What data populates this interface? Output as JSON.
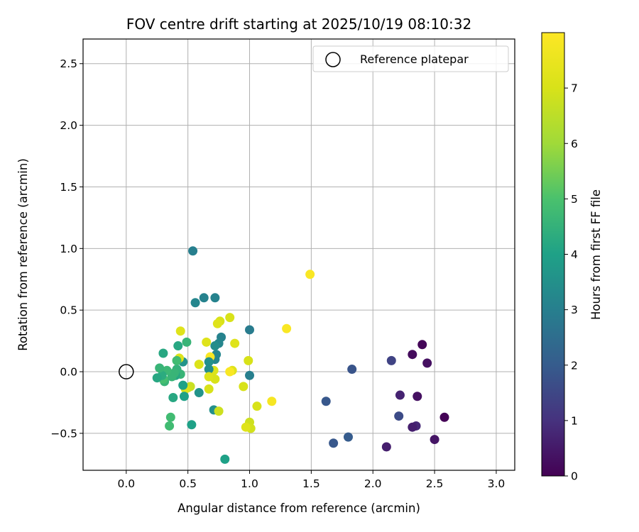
{
  "chart_data": {
    "type": "scatter",
    "title": "FOV centre drift starting at 2025/10/19 08:10:32",
    "xlabel": "Angular distance from reference (arcmin)",
    "ylabel": "Rotation from reference (arcmin)",
    "xlim": [
      -0.35,
      3.15
    ],
    "ylim": [
      -0.8,
      2.7
    ],
    "xticks": [
      0.0,
      0.5,
      1.0,
      1.5,
      2.0,
      2.5,
      3.0
    ],
    "xtick_labels": [
      "0.0",
      "0.5",
      "1.0",
      "1.5",
      "2.0",
      "2.5",
      "3.0"
    ],
    "yticks": [
      -0.5,
      0.0,
      0.5,
      1.0,
      1.5,
      2.0,
      2.5
    ],
    "ytick_labels": [
      "−0.5",
      "0.0",
      "0.5",
      "1.0",
      "1.5",
      "2.0",
      "2.5"
    ],
    "grid": true,
    "legend": {
      "placement": "top-right",
      "label": "Reference platepar"
    },
    "reference_point": {
      "x": 0.0,
      "y": 0.0
    },
    "colorbar": {
      "label": "Hours from first FF file",
      "colormap": "viridis",
      "range": [
        0,
        8
      ],
      "ticks": [
        0,
        1,
        2,
        3,
        4,
        5,
        6,
        7
      ],
      "tick_labels": [
        "0",
        "1",
        "2",
        "3",
        "4",
        "5",
        "6",
        "7"
      ]
    },
    "points": [
      {
        "x": 2.4,
        "y": 0.22,
        "t": 0.1
      },
      {
        "x": 2.44,
        "y": 0.07,
        "t": 0.3
      },
      {
        "x": 2.32,
        "y": 0.14,
        "t": 0.2
      },
      {
        "x": 2.58,
        "y": -0.37,
        "t": 0.05
      },
      {
        "x": 2.5,
        "y": -0.55,
        "t": 0.4
      },
      {
        "x": 2.36,
        "y": -0.2,
        "t": 0.3
      },
      {
        "x": 2.22,
        "y": -0.19,
        "t": 0.7
      },
      {
        "x": 2.35,
        "y": -0.44,
        "t": 0.8
      },
      {
        "x": 2.32,
        "y": -0.45,
        "t": 0.6
      },
      {
        "x": 2.11,
        "y": -0.61,
        "t": 0.6
      },
      {
        "x": 2.21,
        "y": -0.36,
        "t": 1.6
      },
      {
        "x": 2.15,
        "y": 0.09,
        "t": 1.4
      },
      {
        "x": 1.83,
        "y": 0.02,
        "t": 1.8
      },
      {
        "x": 1.62,
        "y": -0.24,
        "t": 1.9
      },
      {
        "x": 1.8,
        "y": -0.53,
        "t": 2.0
      },
      {
        "x": 1.68,
        "y": -0.58,
        "t": 1.9
      },
      {
        "x": 1.49,
        "y": 0.79,
        "t": 7.9
      },
      {
        "x": 1.3,
        "y": 0.35,
        "t": 7.9
      },
      {
        "x": 1.18,
        "y": -0.24,
        "t": 7.8
      },
      {
        "x": 1.06,
        "y": -0.28,
        "t": 7.0
      },
      {
        "x": 1.0,
        "y": -0.41,
        "t": 6.8
      },
      {
        "x": 1.01,
        "y": -0.46,
        "t": 6.9
      },
      {
        "x": 0.97,
        "y": -0.45,
        "t": 7.2
      },
      {
        "x": 0.95,
        "y": -0.12,
        "t": 7.0
      },
      {
        "x": 0.99,
        "y": 0.09,
        "t": 7.0
      },
      {
        "x": 1.0,
        "y": 0.34,
        "t": 2.9
      },
      {
        "x": 1.0,
        "y": -0.03,
        "t": 3.0
      },
      {
        "x": 0.88,
        "y": 0.23,
        "t": 7.2
      },
      {
        "x": 0.86,
        "y": 0.01,
        "t": 7.2
      },
      {
        "x": 0.84,
        "y": 0.0,
        "t": 7.9
      },
      {
        "x": 0.84,
        "y": 0.44,
        "t": 7.0
      },
      {
        "x": 0.8,
        "y": -0.71,
        "t": 4.0
      },
      {
        "x": 0.77,
        "y": 0.28,
        "t": 3.1
      },
      {
        "x": 0.76,
        "y": 0.41,
        "t": 7.0
      },
      {
        "x": 0.74,
        "y": 0.39,
        "t": 7.2
      },
      {
        "x": 0.75,
        "y": 0.23,
        "t": 3.2
      },
      {
        "x": 0.73,
        "y": 0.14,
        "t": 3.2
      },
      {
        "x": 0.72,
        "y": 0.21,
        "t": 3.4
      },
      {
        "x": 0.72,
        "y": 0.1,
        "t": 3.2
      },
      {
        "x": 0.72,
        "y": 0.6,
        "t": 3.1
      },
      {
        "x": 0.71,
        "y": 0.01,
        "t": 7.1
      },
      {
        "x": 0.72,
        "y": -0.06,
        "t": 7.0
      },
      {
        "x": 0.71,
        "y": -0.31,
        "t": 3.5
      },
      {
        "x": 0.75,
        "y": -0.32,
        "t": 6.8
      },
      {
        "x": 0.68,
        "y": 0.12,
        "t": 7.9
      },
      {
        "x": 0.67,
        "y": 0.08,
        "t": 3.5
      },
      {
        "x": 0.67,
        "y": 0.02,
        "t": 3.4
      },
      {
        "x": 0.67,
        "y": -0.04,
        "t": 7.1
      },
      {
        "x": 0.67,
        "y": -0.14,
        "t": 7.0
      },
      {
        "x": 0.65,
        "y": 0.24,
        "t": 7.2
      },
      {
        "x": 0.63,
        "y": 0.6,
        "t": 3.1
      },
      {
        "x": 0.59,
        "y": 0.06,
        "t": 7.1
      },
      {
        "x": 0.59,
        "y": -0.17,
        "t": 3.6
      },
      {
        "x": 0.56,
        "y": 0.56,
        "t": 3.2
      },
      {
        "x": 0.54,
        "y": 0.98,
        "t": 3.0
      },
      {
        "x": 0.53,
        "y": -0.43,
        "t": 4.0
      },
      {
        "x": 0.52,
        "y": -0.12,
        "t": 6.7
      },
      {
        "x": 0.5,
        "y": -0.13,
        "t": 6.8
      },
      {
        "x": 0.49,
        "y": 0.24,
        "t": 4.6
      },
      {
        "x": 0.48,
        "y": -0.14,
        "t": 7.2
      },
      {
        "x": 0.47,
        "y": -0.2,
        "t": 4.0
      },
      {
        "x": 0.46,
        "y": 0.08,
        "t": 3.6
      },
      {
        "x": 0.46,
        "y": -0.11,
        "t": 4.0
      },
      {
        "x": 0.44,
        "y": 0.33,
        "t": 7.2
      },
      {
        "x": 0.44,
        "y": -0.02,
        "t": 4.6
      },
      {
        "x": 0.43,
        "y": 0.11,
        "t": 7.1
      },
      {
        "x": 0.42,
        "y": 0.21,
        "t": 4.2
      },
      {
        "x": 0.41,
        "y": 0.02,
        "t": 4.5
      },
      {
        "x": 0.41,
        "y": 0.09,
        "t": 4.8
      },
      {
        "x": 0.4,
        "y": -0.03,
        "t": 4.2
      },
      {
        "x": 0.39,
        "y": -0.01,
        "t": 4.6
      },
      {
        "x": 0.38,
        "y": -0.21,
        "t": 4.2
      },
      {
        "x": 0.37,
        "y": -0.04,
        "t": 4.6
      },
      {
        "x": 0.36,
        "y": -0.37,
        "t": 4.8
      },
      {
        "x": 0.35,
        "y": -0.44,
        "t": 4.8
      },
      {
        "x": 0.33,
        "y": 0.01,
        "t": 4.7
      },
      {
        "x": 0.31,
        "y": -0.08,
        "t": 4.6
      },
      {
        "x": 0.3,
        "y": -0.06,
        "t": 4.9
      },
      {
        "x": 0.3,
        "y": 0.15,
        "t": 4.2
      },
      {
        "x": 0.29,
        "y": -0.03,
        "t": 4.3
      },
      {
        "x": 0.27,
        "y": 0.03,
        "t": 4.6
      },
      {
        "x": 0.25,
        "y": -0.05,
        "t": 4.2
      }
    ]
  }
}
